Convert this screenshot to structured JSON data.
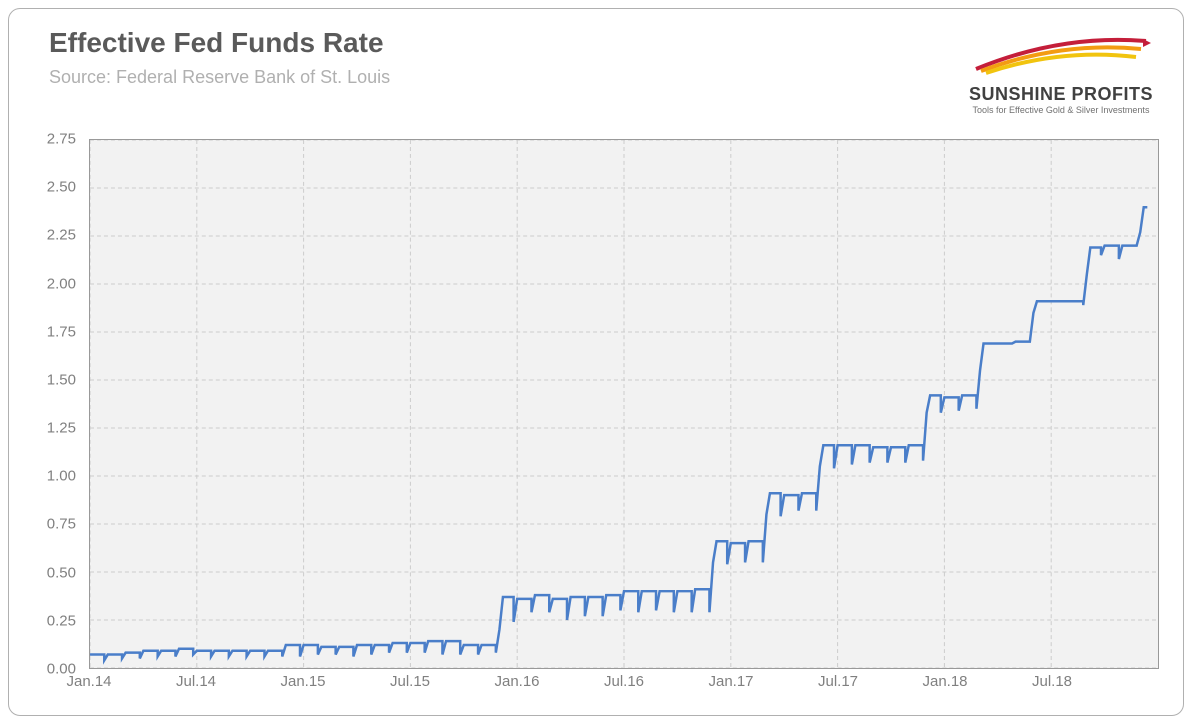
{
  "title": "Effective Fed Funds Rate",
  "subtitle": "Source: Federal Reserve Bank of St. Louis",
  "logo": {
    "brand": "SUNSHINE PROFITS",
    "tagline": "Tools for Effective Gold & Silver Investments",
    "colors": {
      "red": "#c41e3a",
      "orange": "#f39c12",
      "yellow": "#f1c40f"
    }
  },
  "chart": {
    "type": "line",
    "background_color": "#f2f2f2",
    "grid_color": "#cccccc",
    "border_color": "#999999",
    "line_color": "#4a7ec9",
    "line_width": 2.5,
    "ylim": [
      0,
      2.75
    ],
    "ytick_step": 0.25,
    "yticks": [
      0.0,
      0.25,
      0.5,
      0.75,
      1.0,
      1.25,
      1.5,
      1.75,
      2.0,
      2.25,
      2.5,
      2.75
    ],
    "ylabel_fontsize": 15,
    "ylabel_color": "#808080",
    "x_min_month": 0,
    "x_max_month": 60,
    "xticks_months": [
      0,
      6,
      12,
      18,
      24,
      30,
      36,
      42,
      48,
      54
    ],
    "xtick_labels": [
      "Jan.14",
      "Jul.14",
      "Jan.15",
      "Jul.15",
      "Jan.16",
      "Jul.16",
      "Jan.17",
      "Jul.17",
      "Jan.18",
      "Jul.18"
    ],
    "xlabel_fontsize": 15,
    "xlabel_color": "#808080",
    "data": [
      [
        0.0,
        0.07
      ],
      [
        0.8,
        0.07
      ],
      [
        0.8,
        0.04
      ],
      [
        1.0,
        0.07
      ],
      [
        1.8,
        0.07
      ],
      [
        1.8,
        0.05
      ],
      [
        2.0,
        0.08
      ],
      [
        2.8,
        0.08
      ],
      [
        2.8,
        0.05
      ],
      [
        3.0,
        0.09
      ],
      [
        3.8,
        0.09
      ],
      [
        3.8,
        0.06
      ],
      [
        4.0,
        0.09
      ],
      [
        4.8,
        0.09
      ],
      [
        4.8,
        0.06
      ],
      [
        5.0,
        0.1
      ],
      [
        5.8,
        0.1
      ],
      [
        5.8,
        0.07
      ],
      [
        6.0,
        0.09
      ],
      [
        6.8,
        0.09
      ],
      [
        6.8,
        0.06
      ],
      [
        7.0,
        0.09
      ],
      [
        7.8,
        0.09
      ],
      [
        7.8,
        0.06
      ],
      [
        8.0,
        0.09
      ],
      [
        8.8,
        0.09
      ],
      [
        8.8,
        0.06
      ],
      [
        9.0,
        0.09
      ],
      [
        9.8,
        0.09
      ],
      [
        9.8,
        0.06
      ],
      [
        10.0,
        0.09
      ],
      [
        10.8,
        0.09
      ],
      [
        10.8,
        0.06
      ],
      [
        11.0,
        0.12
      ],
      [
        11.8,
        0.12
      ],
      [
        11.8,
        0.06
      ],
      [
        12.0,
        0.12
      ],
      [
        12.8,
        0.12
      ],
      [
        12.8,
        0.07
      ],
      [
        13.0,
        0.11
      ],
      [
        13.8,
        0.11
      ],
      [
        13.8,
        0.07
      ],
      [
        14.0,
        0.11
      ],
      [
        14.8,
        0.11
      ],
      [
        14.8,
        0.06
      ],
      [
        15.0,
        0.12
      ],
      [
        15.8,
        0.12
      ],
      [
        15.8,
        0.07
      ],
      [
        16.0,
        0.12
      ],
      [
        16.8,
        0.12
      ],
      [
        16.8,
        0.08
      ],
      [
        17.0,
        0.13
      ],
      [
        17.8,
        0.13
      ],
      [
        17.8,
        0.08
      ],
      [
        18.0,
        0.13
      ],
      [
        18.8,
        0.13
      ],
      [
        18.8,
        0.08
      ],
      [
        19.0,
        0.14
      ],
      [
        19.8,
        0.14
      ],
      [
        19.8,
        0.07
      ],
      [
        20.0,
        0.14
      ],
      [
        20.8,
        0.14
      ],
      [
        20.8,
        0.07
      ],
      [
        21.0,
        0.12
      ],
      [
        21.8,
        0.12
      ],
      [
        21.8,
        0.07
      ],
      [
        22.0,
        0.12
      ],
      [
        22.8,
        0.12
      ],
      [
        22.8,
        0.08
      ],
      [
        23.0,
        0.2
      ],
      [
        23.2,
        0.37
      ],
      [
        23.8,
        0.37
      ],
      [
        23.8,
        0.24
      ],
      [
        24.0,
        0.36
      ],
      [
        24.8,
        0.36
      ],
      [
        24.8,
        0.29
      ],
      [
        25.0,
        0.38
      ],
      [
        25.8,
        0.38
      ],
      [
        25.8,
        0.29
      ],
      [
        26.0,
        0.36
      ],
      [
        26.8,
        0.36
      ],
      [
        26.8,
        0.25
      ],
      [
        27.0,
        0.37
      ],
      [
        27.8,
        0.37
      ],
      [
        27.8,
        0.27
      ],
      [
        28.0,
        0.37
      ],
      [
        28.8,
        0.37
      ],
      [
        28.8,
        0.27
      ],
      [
        29.0,
        0.38
      ],
      [
        29.8,
        0.38
      ],
      [
        29.8,
        0.3
      ],
      [
        30.0,
        0.4
      ],
      [
        30.8,
        0.4
      ],
      [
        30.8,
        0.29
      ],
      [
        31.0,
        0.4
      ],
      [
        31.8,
        0.4
      ],
      [
        31.8,
        0.3
      ],
      [
        32.0,
        0.4
      ],
      [
        32.8,
        0.4
      ],
      [
        32.8,
        0.29
      ],
      [
        33.0,
        0.4
      ],
      [
        33.8,
        0.4
      ],
      [
        33.8,
        0.29
      ],
      [
        34.0,
        0.41
      ],
      [
        34.8,
        0.41
      ],
      [
        34.8,
        0.29
      ],
      [
        35.0,
        0.55
      ],
      [
        35.2,
        0.66
      ],
      [
        35.8,
        0.66
      ],
      [
        35.8,
        0.54
      ],
      [
        36.0,
        0.65
      ],
      [
        36.8,
        0.65
      ],
      [
        36.8,
        0.55
      ],
      [
        37.0,
        0.66
      ],
      [
        37.8,
        0.66
      ],
      [
        37.8,
        0.55
      ],
      [
        38.0,
        0.8
      ],
      [
        38.2,
        0.91
      ],
      [
        38.8,
        0.91
      ],
      [
        38.8,
        0.79
      ],
      [
        39.0,
        0.9
      ],
      [
        39.8,
        0.9
      ],
      [
        39.8,
        0.82
      ],
      [
        40.0,
        0.91
      ],
      [
        40.8,
        0.91
      ],
      [
        40.8,
        0.82
      ],
      [
        41.0,
        1.05
      ],
      [
        41.2,
        1.16
      ],
      [
        41.8,
        1.16
      ],
      [
        41.8,
        1.04
      ],
      [
        42.0,
        1.16
      ],
      [
        42.8,
        1.16
      ],
      [
        42.8,
        1.06
      ],
      [
        43.0,
        1.16
      ],
      [
        43.8,
        1.16
      ],
      [
        43.8,
        1.07
      ],
      [
        44.0,
        1.15
      ],
      [
        44.8,
        1.15
      ],
      [
        44.8,
        1.07
      ],
      [
        45.0,
        1.15
      ],
      [
        45.8,
        1.15
      ],
      [
        45.8,
        1.07
      ],
      [
        46.0,
        1.16
      ],
      [
        46.8,
        1.16
      ],
      [
        46.8,
        1.08
      ],
      [
        47.0,
        1.33
      ],
      [
        47.2,
        1.42
      ],
      [
        47.8,
        1.42
      ],
      [
        47.8,
        1.33
      ],
      [
        48.0,
        1.41
      ],
      [
        48.8,
        1.41
      ],
      [
        48.8,
        1.34
      ],
      [
        49.0,
        1.42
      ],
      [
        49.8,
        1.42
      ],
      [
        49.8,
        1.35
      ],
      [
        50.0,
        1.55
      ],
      [
        50.2,
        1.69
      ],
      [
        50.8,
        1.69
      ],
      [
        51.0,
        1.69
      ],
      [
        51.8,
        1.69
      ],
      [
        52.0,
        1.7
      ],
      [
        52.8,
        1.7
      ],
      [
        53.0,
        1.85
      ],
      [
        53.2,
        1.91
      ],
      [
        53.8,
        1.91
      ],
      [
        54.0,
        1.91
      ],
      [
        54.8,
        1.91
      ],
      [
        55.0,
        1.91
      ],
      [
        55.8,
        1.91
      ],
      [
        55.8,
        1.89
      ],
      [
        56.0,
        2.05
      ],
      [
        56.2,
        2.19
      ],
      [
        56.8,
        2.19
      ],
      [
        56.8,
        2.15
      ],
      [
        57.0,
        2.2
      ],
      [
        57.8,
        2.2
      ],
      [
        57.8,
        2.13
      ],
      [
        58.0,
        2.2
      ],
      [
        58.8,
        2.2
      ],
      [
        59.0,
        2.27
      ],
      [
        59.2,
        2.4
      ],
      [
        59.4,
        2.4
      ]
    ]
  }
}
